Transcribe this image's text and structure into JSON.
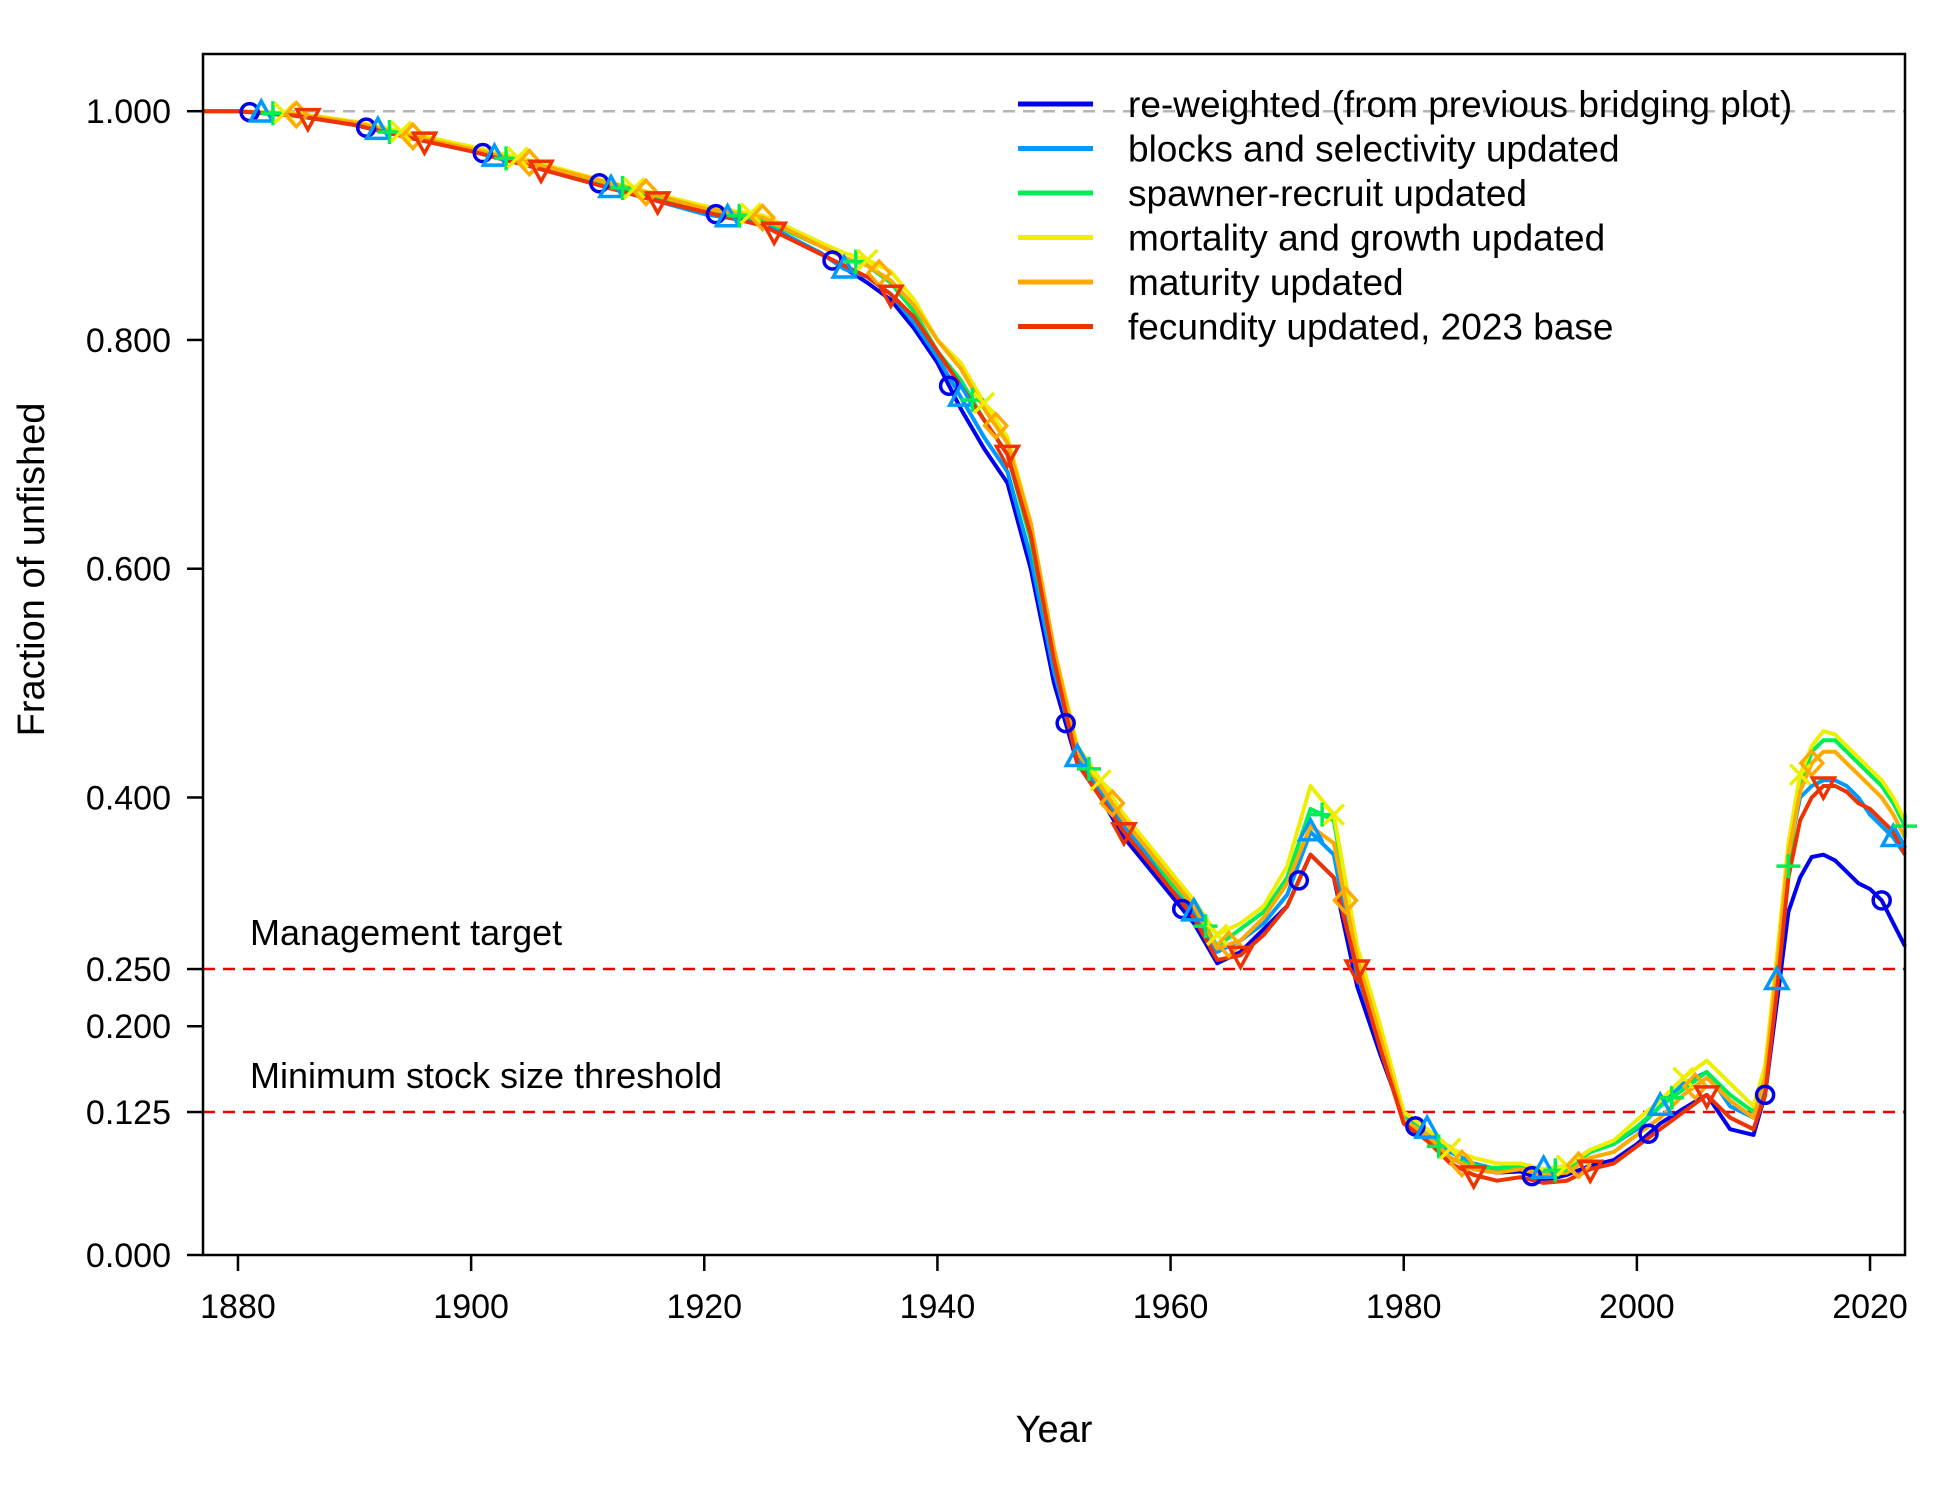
{
  "chart_data": {
    "type": "line",
    "title": "",
    "xlabel": "Year",
    "ylabel": "Fraction of unfished",
    "xlim": [
      1877,
      2023
    ],
    "ylim": [
      0,
      1.05
    ],
    "x_ticks": [
      1880,
      1900,
      1920,
      1940,
      1960,
      1980,
      2000,
      2020
    ],
    "x_tick_labels": [
      "1880",
      "1900",
      "1920",
      "1940",
      "1960",
      "1980",
      "2000",
      "2020"
    ],
    "y_ticks": [
      0,
      0.125,
      0.2,
      0.25,
      0.4,
      0.6,
      0.8,
      1.0
    ],
    "y_tick_labels": [
      "0.000",
      "0.125",
      "0.200",
      "0.250",
      "0.400",
      "0.600",
      "0.800",
      "1.000"
    ],
    "grid": false,
    "legend_position": "top-right",
    "reference_lines": [
      {
        "y": 1.0,
        "color": "#b5b5b5",
        "style": "dashed",
        "label": ""
      },
      {
        "y": 0.25,
        "color": "#ee0000",
        "style": "dashed",
        "label": "Management target"
      },
      {
        "y": 0.125,
        "color": "#ee0000",
        "style": "dashed",
        "label": "Minimum stock size threshold"
      }
    ],
    "x": [
      1877,
      1880,
      1885,
      1890,
      1895,
      1900,
      1905,
      1910,
      1915,
      1920,
      1925,
      1930,
      1932,
      1934,
      1936,
      1938,
      1940,
      1942,
      1944,
      1946,
      1948,
      1950,
      1952,
      1954,
      1956,
      1958,
      1960,
      1962,
      1964,
      1966,
      1968,
      1970,
      1972,
      1974,
      1976,
      1978,
      1980,
      1982,
      1984,
      1986,
      1988,
      1990,
      1992,
      1994,
      1996,
      1998,
      2000,
      2002,
      2004,
      2006,
      2008,
      2010,
      2011,
      2012,
      2013,
      2014,
      2015,
      2016,
      2017,
      2018,
      2019,
      2020,
      2021,
      2022,
      2023
    ],
    "series": [
      {
        "name": "re-weighted (from previous bridging plot)",
        "color": "#0000ee",
        "marker": "circle",
        "values": [
          1.0,
          1.0,
          0.996,
          0.988,
          0.976,
          0.966,
          0.953,
          0.94,
          0.925,
          0.912,
          0.902,
          0.876,
          0.863,
          0.85,
          0.835,
          0.81,
          0.78,
          0.74,
          0.705,
          0.675,
          0.6,
          0.5,
          0.43,
          0.4,
          0.365,
          0.34,
          0.315,
          0.29,
          0.255,
          0.265,
          0.285,
          0.305,
          0.35,
          0.33,
          0.235,
          0.175,
          0.12,
          0.105,
          0.085,
          0.075,
          0.072,
          0.073,
          0.065,
          0.07,
          0.078,
          0.083,
          0.097,
          0.115,
          0.128,
          0.14,
          0.11,
          0.105,
          0.14,
          0.22,
          0.3,
          0.33,
          0.348,
          0.35,
          0.345,
          0.335,
          0.325,
          0.32,
          0.31,
          0.29,
          0.27
        ]
      },
      {
        "name": "blocks and selectivity updated",
        "color": "#0099ff",
        "marker": "triangle",
        "values": [
          1.0,
          1.0,
          0.996,
          0.988,
          0.976,
          0.965,
          0.952,
          0.938,
          0.924,
          0.91,
          0.902,
          0.876,
          0.862,
          0.855,
          0.84,
          0.815,
          0.785,
          0.75,
          0.715,
          0.685,
          0.61,
          0.51,
          0.435,
          0.405,
          0.375,
          0.35,
          0.32,
          0.3,
          0.265,
          0.275,
          0.29,
          0.315,
          0.37,
          0.35,
          0.245,
          0.185,
          0.12,
          0.11,
          0.09,
          0.08,
          0.075,
          0.076,
          0.075,
          0.078,
          0.092,
          0.097,
          0.11,
          0.13,
          0.15,
          0.16,
          0.13,
          0.12,
          0.15,
          0.24,
          0.35,
          0.4,
          0.41,
          0.415,
          0.415,
          0.41,
          0.4,
          0.385,
          0.375,
          0.365,
          0.35
        ]
      },
      {
        "name": "spawner-recruit updated",
        "color": "#00ee55",
        "marker": "plus",
        "values": [
          1.0,
          1.0,
          0.997,
          0.989,
          0.977,
          0.966,
          0.954,
          0.94,
          0.928,
          0.914,
          0.905,
          0.882,
          0.872,
          0.865,
          0.85,
          0.825,
          0.79,
          0.765,
          0.73,
          0.7,
          0.625,
          0.52,
          0.44,
          0.41,
          0.38,
          0.355,
          0.325,
          0.305,
          0.27,
          0.285,
          0.3,
          0.33,
          0.39,
          0.38,
          0.26,
          0.19,
          0.12,
          0.105,
          0.085,
          0.078,
          0.076,
          0.078,
          0.073,
          0.075,
          0.09,
          0.097,
          0.112,
          0.13,
          0.145,
          0.16,
          0.14,
          0.125,
          0.16,
          0.25,
          0.34,
          0.41,
          0.44,
          0.45,
          0.45,
          0.44,
          0.43,
          0.42,
          0.41,
          0.395,
          0.375
        ]
      },
      {
        "name": "mortality and growth updated",
        "color": "#eeee00",
        "marker": "x",
        "values": [
          1.0,
          1.0,
          0.998,
          0.991,
          0.98,
          0.969,
          0.957,
          0.943,
          0.93,
          0.917,
          0.909,
          0.885,
          0.876,
          0.87,
          0.86,
          0.835,
          0.8,
          0.78,
          0.745,
          0.715,
          0.64,
          0.53,
          0.445,
          0.415,
          0.385,
          0.36,
          0.335,
          0.31,
          0.28,
          0.29,
          0.305,
          0.34,
          0.41,
          0.385,
          0.27,
          0.2,
          0.125,
          0.11,
          0.093,
          0.085,
          0.08,
          0.08,
          0.075,
          0.078,
          0.092,
          0.1,
          0.118,
          0.135,
          0.155,
          0.17,
          0.15,
          0.13,
          0.165,
          0.26,
          0.36,
          0.42,
          0.445,
          0.458,
          0.455,
          0.445,
          0.435,
          0.425,
          0.415,
          0.4,
          0.38
        ]
      },
      {
        "name": "maturity updated",
        "color": "#ffaa00",
        "marker": "diamond",
        "values": [
          1.0,
          1.0,
          0.997,
          0.99,
          0.978,
          0.967,
          0.955,
          0.942,
          0.929,
          0.915,
          0.907,
          0.882,
          0.872,
          0.865,
          0.852,
          0.83,
          0.8,
          0.775,
          0.74,
          0.71,
          0.64,
          0.53,
          0.44,
          0.41,
          0.38,
          0.355,
          0.33,
          0.305,
          0.268,
          0.275,
          0.295,
          0.325,
          0.375,
          0.36,
          0.26,
          0.19,
          0.118,
          0.105,
          0.085,
          0.075,
          0.072,
          0.075,
          0.07,
          0.072,
          0.085,
          0.09,
          0.105,
          0.12,
          0.14,
          0.155,
          0.135,
          0.12,
          0.155,
          0.25,
          0.35,
          0.405,
          0.43,
          0.44,
          0.44,
          0.43,
          0.42,
          0.41,
          0.4,
          0.385,
          0.365
        ]
      },
      {
        "name": "fecundity updated, 2023 base",
        "color": "#ee3300",
        "marker": "down-triangle",
        "values": [
          1.0,
          1.0,
          0.996,
          0.988,
          0.976,
          0.965,
          0.952,
          0.938,
          0.924,
          0.912,
          0.9,
          0.875,
          0.865,
          0.855,
          0.84,
          0.82,
          0.79,
          0.76,
          0.73,
          0.7,
          0.63,
          0.52,
          0.43,
          0.4,
          0.37,
          0.345,
          0.32,
          0.295,
          0.258,
          0.262,
          0.28,
          0.305,
          0.35,
          0.33,
          0.25,
          0.18,
          0.115,
          0.1,
          0.08,
          0.07,
          0.065,
          0.068,
          0.063,
          0.065,
          0.075,
          0.08,
          0.095,
          0.11,
          0.125,
          0.14,
          0.12,
          0.11,
          0.14,
          0.23,
          0.33,
          0.38,
          0.4,
          0.41,
          0.41,
          0.405,
          0.395,
          0.39,
          0.38,
          0.37,
          0.35
        ]
      }
    ],
    "legend_entries": [
      "re-weighted (from previous bridging plot)",
      "blocks and selectivity updated",
      "spawner-recruit updated",
      "mortality and growth updated",
      "maturity updated",
      "fecundity updated, 2023 base"
    ]
  }
}
